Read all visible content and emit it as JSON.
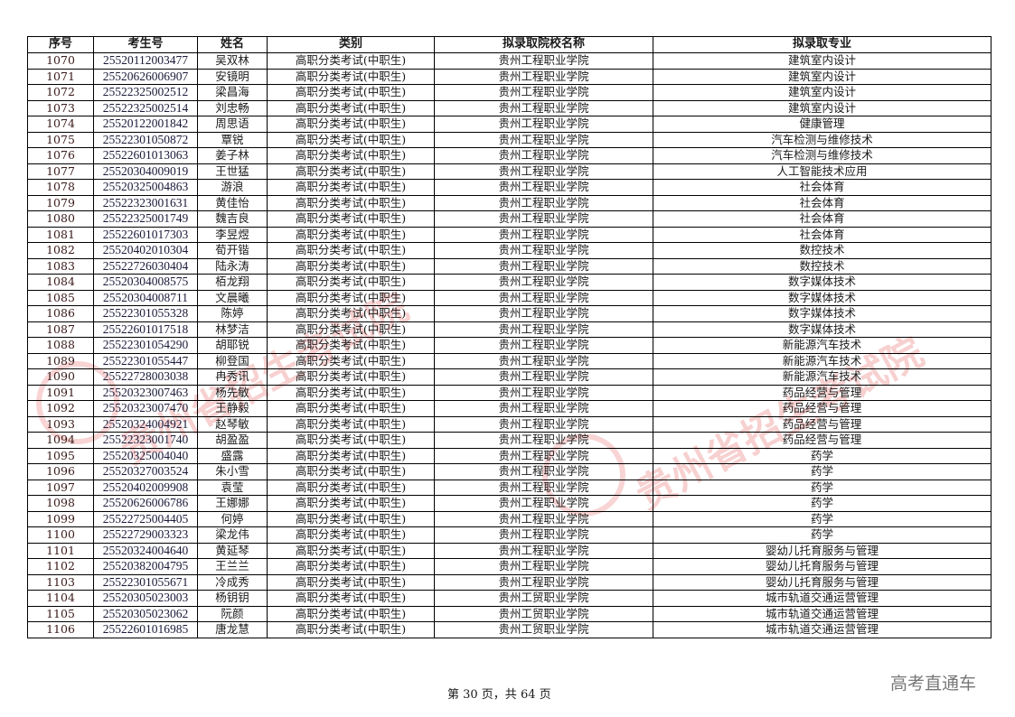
{
  "table": {
    "headers": [
      "序号",
      "考生号",
      "姓名",
      "类别",
      "拟录取院校名称",
      "拟录取专业"
    ],
    "rows": [
      [
        "1070",
        "25520112003477",
        "吴双林",
        "高职分类考试(中职生)",
        "贵州工程职业学院",
        "建筑室内设计"
      ],
      [
        "1071",
        "25520626006907",
        "安镜明",
        "高职分类考试(中职生)",
        "贵州工程职业学院",
        "建筑室内设计"
      ],
      [
        "1072",
        "25522325002512",
        "梁昌海",
        "高职分类考试(中职生)",
        "贵州工程职业学院",
        "建筑室内设计"
      ],
      [
        "1073",
        "25522325002514",
        "刘忠畅",
        "高职分类考试(中职生)",
        "贵州工程职业学院",
        "建筑室内设计"
      ],
      [
        "1074",
        "25520122001842",
        "周思语",
        "高职分类考试(中职生)",
        "贵州工程职业学院",
        "健康管理"
      ],
      [
        "1075",
        "25522301050872",
        "覃锐",
        "高职分类考试(中职生)",
        "贵州工程职业学院",
        "汽车检测与维修技术"
      ],
      [
        "1076",
        "25522601013063",
        "姜子林",
        "高职分类考试(中职生)",
        "贵州工程职业学院",
        "汽车检测与维修技术"
      ],
      [
        "1077",
        "25520304009019",
        "王世猛",
        "高职分类考试(中职生)",
        "贵州工程职业学院",
        "人工智能技术应用"
      ],
      [
        "1078",
        "25520325004863",
        "游浪",
        "高职分类考试(中职生)",
        "贵州工程职业学院",
        "社会体育"
      ],
      [
        "1079",
        "25522323001631",
        "黄佳怡",
        "高职分类考试(中职生)",
        "贵州工程职业学院",
        "社会体育"
      ],
      [
        "1080",
        "25522325001749",
        "魏吉良",
        "高职分类考试(中职生)",
        "贵州工程职业学院",
        "社会体育"
      ],
      [
        "1081",
        "25522601017303",
        "李昱煜",
        "高职分类考试(中职生)",
        "贵州工程职业学院",
        "社会体育"
      ],
      [
        "1082",
        "25520402010304",
        "荀开锴",
        "高职分类考试(中职生)",
        "贵州工程职业学院",
        "数控技术"
      ],
      [
        "1083",
        "25522726030404",
        "陆永涛",
        "高职分类考试(中职生)",
        "贵州工程职业学院",
        "数控技术"
      ],
      [
        "1084",
        "25520304008575",
        "栢龙翔",
        "高职分类考试(中职生)",
        "贵州工程职业学院",
        "数字媒体技术"
      ],
      [
        "1085",
        "25520304008711",
        "文晨曦",
        "高职分类考试(中职生)",
        "贵州工程职业学院",
        "数字媒体技术"
      ],
      [
        "1086",
        "25522301055328",
        "陈婷",
        "高职分类考试(中职生)",
        "贵州工程职业学院",
        "数字媒体技术"
      ],
      [
        "1087",
        "25522601017518",
        "林梦洁",
        "高职分类考试(中职生)",
        "贵州工程职业学院",
        "数字媒体技术"
      ],
      [
        "1088",
        "25522301054290",
        "胡耶锐",
        "高职分类考试(中职生)",
        "贵州工程职业学院",
        "新能源汽车技术"
      ],
      [
        "1089",
        "25522301055447",
        "柳登国",
        "高职分类考试(中职生)",
        "贵州工程职业学院",
        "新能源汽车技术"
      ],
      [
        "1090",
        "25522728003038",
        "冉秀讯",
        "高职分类考试(中职生)",
        "贵州工程职业学院",
        "新能源汽车技术"
      ],
      [
        "1091",
        "25520323007463",
        "杨先敏",
        "高职分类考试(中职生)",
        "贵州工程职业学院",
        "药品经营与管理"
      ],
      [
        "1092",
        "25520323007470",
        "王静毅",
        "高职分类考试(中职生)",
        "贵州工程职业学院",
        "药品经营与管理"
      ],
      [
        "1093",
        "25520324004921",
        "赵琴敏",
        "高职分类考试(中职生)",
        "贵州工程职业学院",
        "药品经营与管理"
      ],
      [
        "1094",
        "25522323001740",
        "胡盈盈",
        "高职分类考试(中职生)",
        "贵州工程职业学院",
        "药品经营与管理"
      ],
      [
        "1095",
        "25520325004040",
        "盛露",
        "高职分类考试(中职生)",
        "贵州工程职业学院",
        "药学"
      ],
      [
        "1096",
        "25520327003524",
        "朱小雪",
        "高职分类考试(中职生)",
        "贵州工程职业学院",
        "药学"
      ],
      [
        "1097",
        "25520402009908",
        "袁莹",
        "高职分类考试(中职生)",
        "贵州工程职业学院",
        "药学"
      ],
      [
        "1098",
        "25520626006786",
        "王娜娜",
        "高职分类考试(中职生)",
        "贵州工程职业学院",
        "药学"
      ],
      [
        "1099",
        "25522725004405",
        "何婷",
        "高职分类考试(中职生)",
        "贵州工程职业学院",
        "药学"
      ],
      [
        "1100",
        "25522729003323",
        "梁龙伟",
        "高职分类考试(中职生)",
        "贵州工程职业学院",
        "药学"
      ],
      [
        "1101",
        "25520324004640",
        "黄延琴",
        "高职分类考试(中职生)",
        "贵州工程职业学院",
        "婴幼儿托育服务与管理"
      ],
      [
        "1102",
        "25520382004795",
        "王兰兰",
        "高职分类考试(中职生)",
        "贵州工程职业学院",
        "婴幼儿托育服务与管理"
      ],
      [
        "1103",
        "25522301055671",
        "冷成秀",
        "高职分类考试(中职生)",
        "贵州工程职业学院",
        "婴幼儿托育服务与管理"
      ],
      [
        "1104",
        "25520305023003",
        "杨钥钥",
        "高职分类考试(中职生)",
        "贵州工贸职业学院",
        "城市轨道交通运营管理"
      ],
      [
        "1105",
        "25520305023062",
        "阮颜",
        "高职分类考试(中职生)",
        "贵州工贸职业学院",
        "城市轨道交通运营管理"
      ],
      [
        "1106",
        "25522601016985",
        "唐龙慧",
        "高职分类考试(中职生)",
        "贵州工贸职业学院",
        "城市轨道交通运营管理"
      ]
    ]
  },
  "footer": {
    "page_text": "第 30 页，共 64 页"
  },
  "brand": "高考直通车",
  "watermark": {
    "text": "贵州省招生考试院",
    "color": "#dc2828"
  }
}
